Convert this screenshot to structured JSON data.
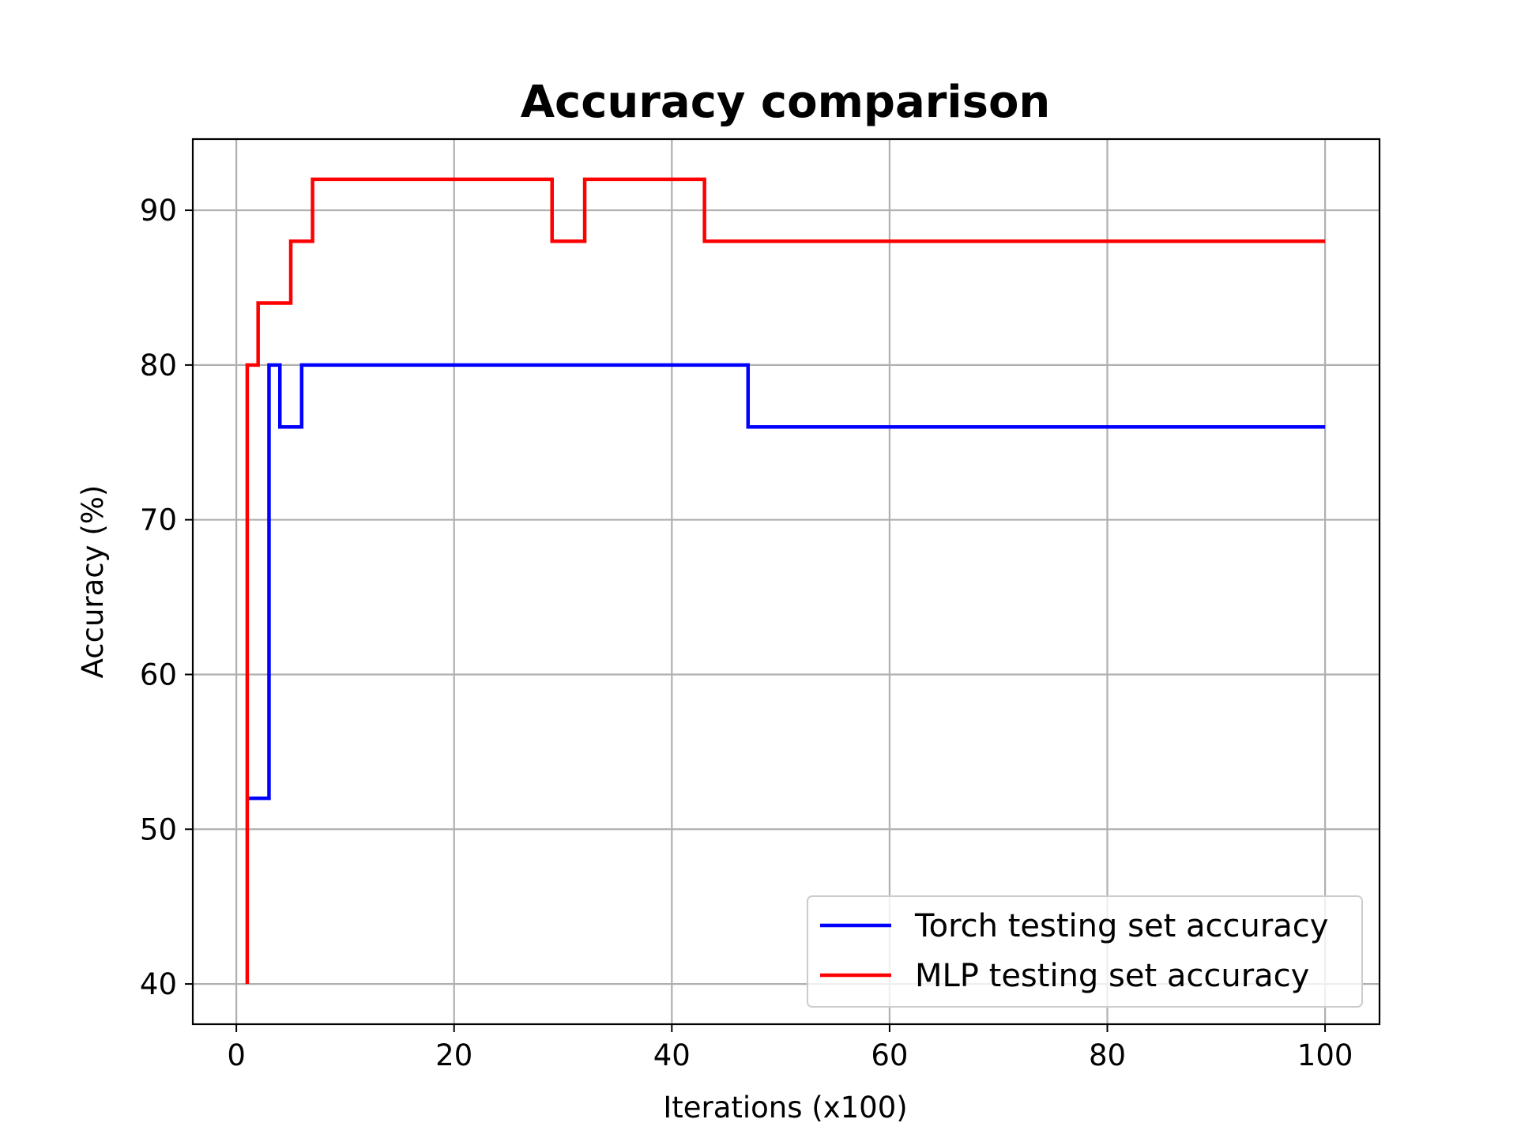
{
  "chart_data": {
    "type": "line",
    "title": "Accuracy comparison",
    "xlabel": "Iterations (x100)",
    "ylabel": "Accuracy (%)",
    "xlim": [
      -4,
      105
    ],
    "ylim": [
      37.4,
      94.6
    ],
    "xticks": [
      0,
      20,
      40,
      60,
      80,
      100
    ],
    "yticks": [
      40,
      50,
      60,
      70,
      80,
      90
    ],
    "grid": true,
    "legend_position": "lower-right",
    "step_style": "post",
    "series": [
      {
        "name": "Torch testing set accuracy",
        "color": "#0000ff",
        "x": [
          1,
          3,
          4,
          6,
          47,
          100
        ],
        "y": [
          52,
          80,
          76,
          80,
          76,
          76
        ]
      },
      {
        "name": "MLP testing set accuracy",
        "color": "#ff0000",
        "x": [
          1,
          1,
          2,
          5,
          7,
          29,
          32,
          43,
          100
        ],
        "y": [
          40,
          80,
          84,
          88,
          92,
          88,
          92,
          88,
          88
        ]
      }
    ]
  }
}
